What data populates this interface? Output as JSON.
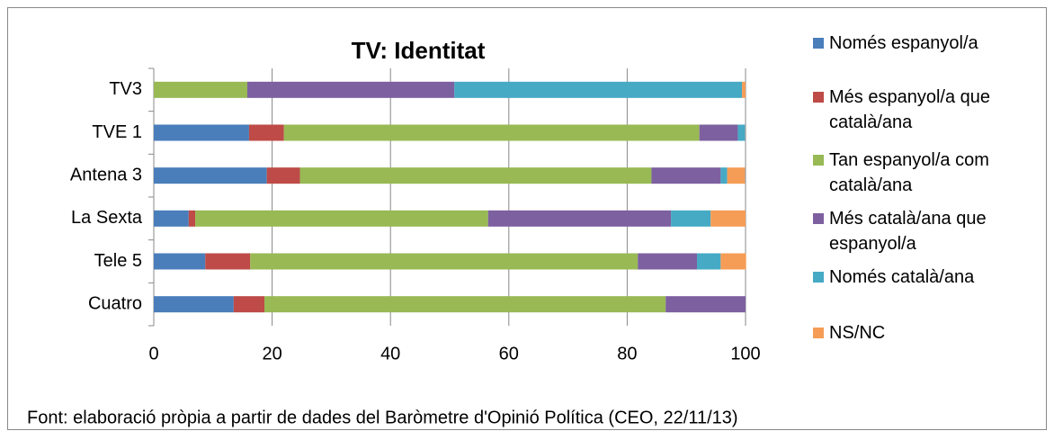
{
  "chart_data": {
    "type": "stacked_bar_horizontal",
    "title": "TV: Identitat",
    "categories": [
      "TV3",
      "TVE 1",
      "Antena 3",
      "La Sexta",
      "Tele 5",
      "Cuatro"
    ],
    "series": [
      {
        "name": "Només espanyol/a",
        "color": "#4a7ebb",
        "values": [
          0,
          16.1,
          19.1,
          5.9,
          8.7,
          13.5
        ]
      },
      {
        "name": "Més espanyol/a que català/ana",
        "color": "#be4b48",
        "values": [
          0,
          5.9,
          5.6,
          1.1,
          7.6,
          5.2
        ]
      },
      {
        "name": "Tan espanyol/a com català/ana",
        "color": "#98b954",
        "values": [
          15.8,
          70.2,
          59.4,
          49.5,
          65.5,
          67.8
        ]
      },
      {
        "name": "Més català/ana que espanyol/a",
        "color": "#7d60a0",
        "values": [
          35,
          6.5,
          11.7,
          30.9,
          10,
          13.5
        ]
      },
      {
        "name": "Només català/ana",
        "color": "#46aac5",
        "values": [
          48.6,
          1.2,
          1.1,
          6.7,
          4,
          0
        ]
      },
      {
        "name": "NS/NC",
        "color": "#f59d56",
        "values": [
          0.6,
          0,
          3,
          5.9,
          4.3,
          0
        ]
      }
    ],
    "xlim": [
      0,
      100
    ],
    "xticks": [
      0,
      20,
      40,
      60,
      80,
      100
    ],
    "grid": true,
    "legend": "right",
    "source": "Font: elaboració pròpia a partir de dades del Baròmetre d'Opinió Política (CEO,  22/11/13)"
  }
}
